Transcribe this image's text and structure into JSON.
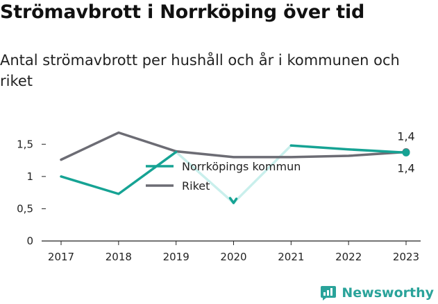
{
  "title": "Strömavbrott i Norrköping över tid",
  "subtitle": "Antal strömavbrott per hushåll och år i kommunen och riket",
  "brand": {
    "name": "Newsworthy",
    "icon": "newsworthy-logo-icon"
  },
  "colors": {
    "kommun": "#16a394",
    "kommun_fade": "#c9efec",
    "riket": "#6c6c74",
    "axis": "#222222"
  },
  "chart_data": {
    "type": "line",
    "title": "Strömavbrott i Norrköping över tid",
    "subtitle": "Antal strömavbrott per hushåll och år i kommunen och riket",
    "x": [
      "2017",
      "2018",
      "2019",
      "2020",
      "2021",
      "2022",
      "2023"
    ],
    "ylim": [
      0,
      1.75
    ],
    "y_ticks": [
      "0",
      "0,5",
      "1",
      "1,5"
    ],
    "series": [
      {
        "name": "Norrköpings kommun",
        "values": [
          1.0,
          0.73,
          1.38,
          0.59,
          1.48,
          1.42,
          1.37
        ]
      },
      {
        "name": "Riket",
        "values": [
          1.26,
          1.68,
          1.39,
          1.3,
          1.3,
          1.32,
          1.38
        ]
      }
    ],
    "end_labels": {
      "kommun": "1,4",
      "riket": "1,4"
    },
    "legend": "center"
  }
}
